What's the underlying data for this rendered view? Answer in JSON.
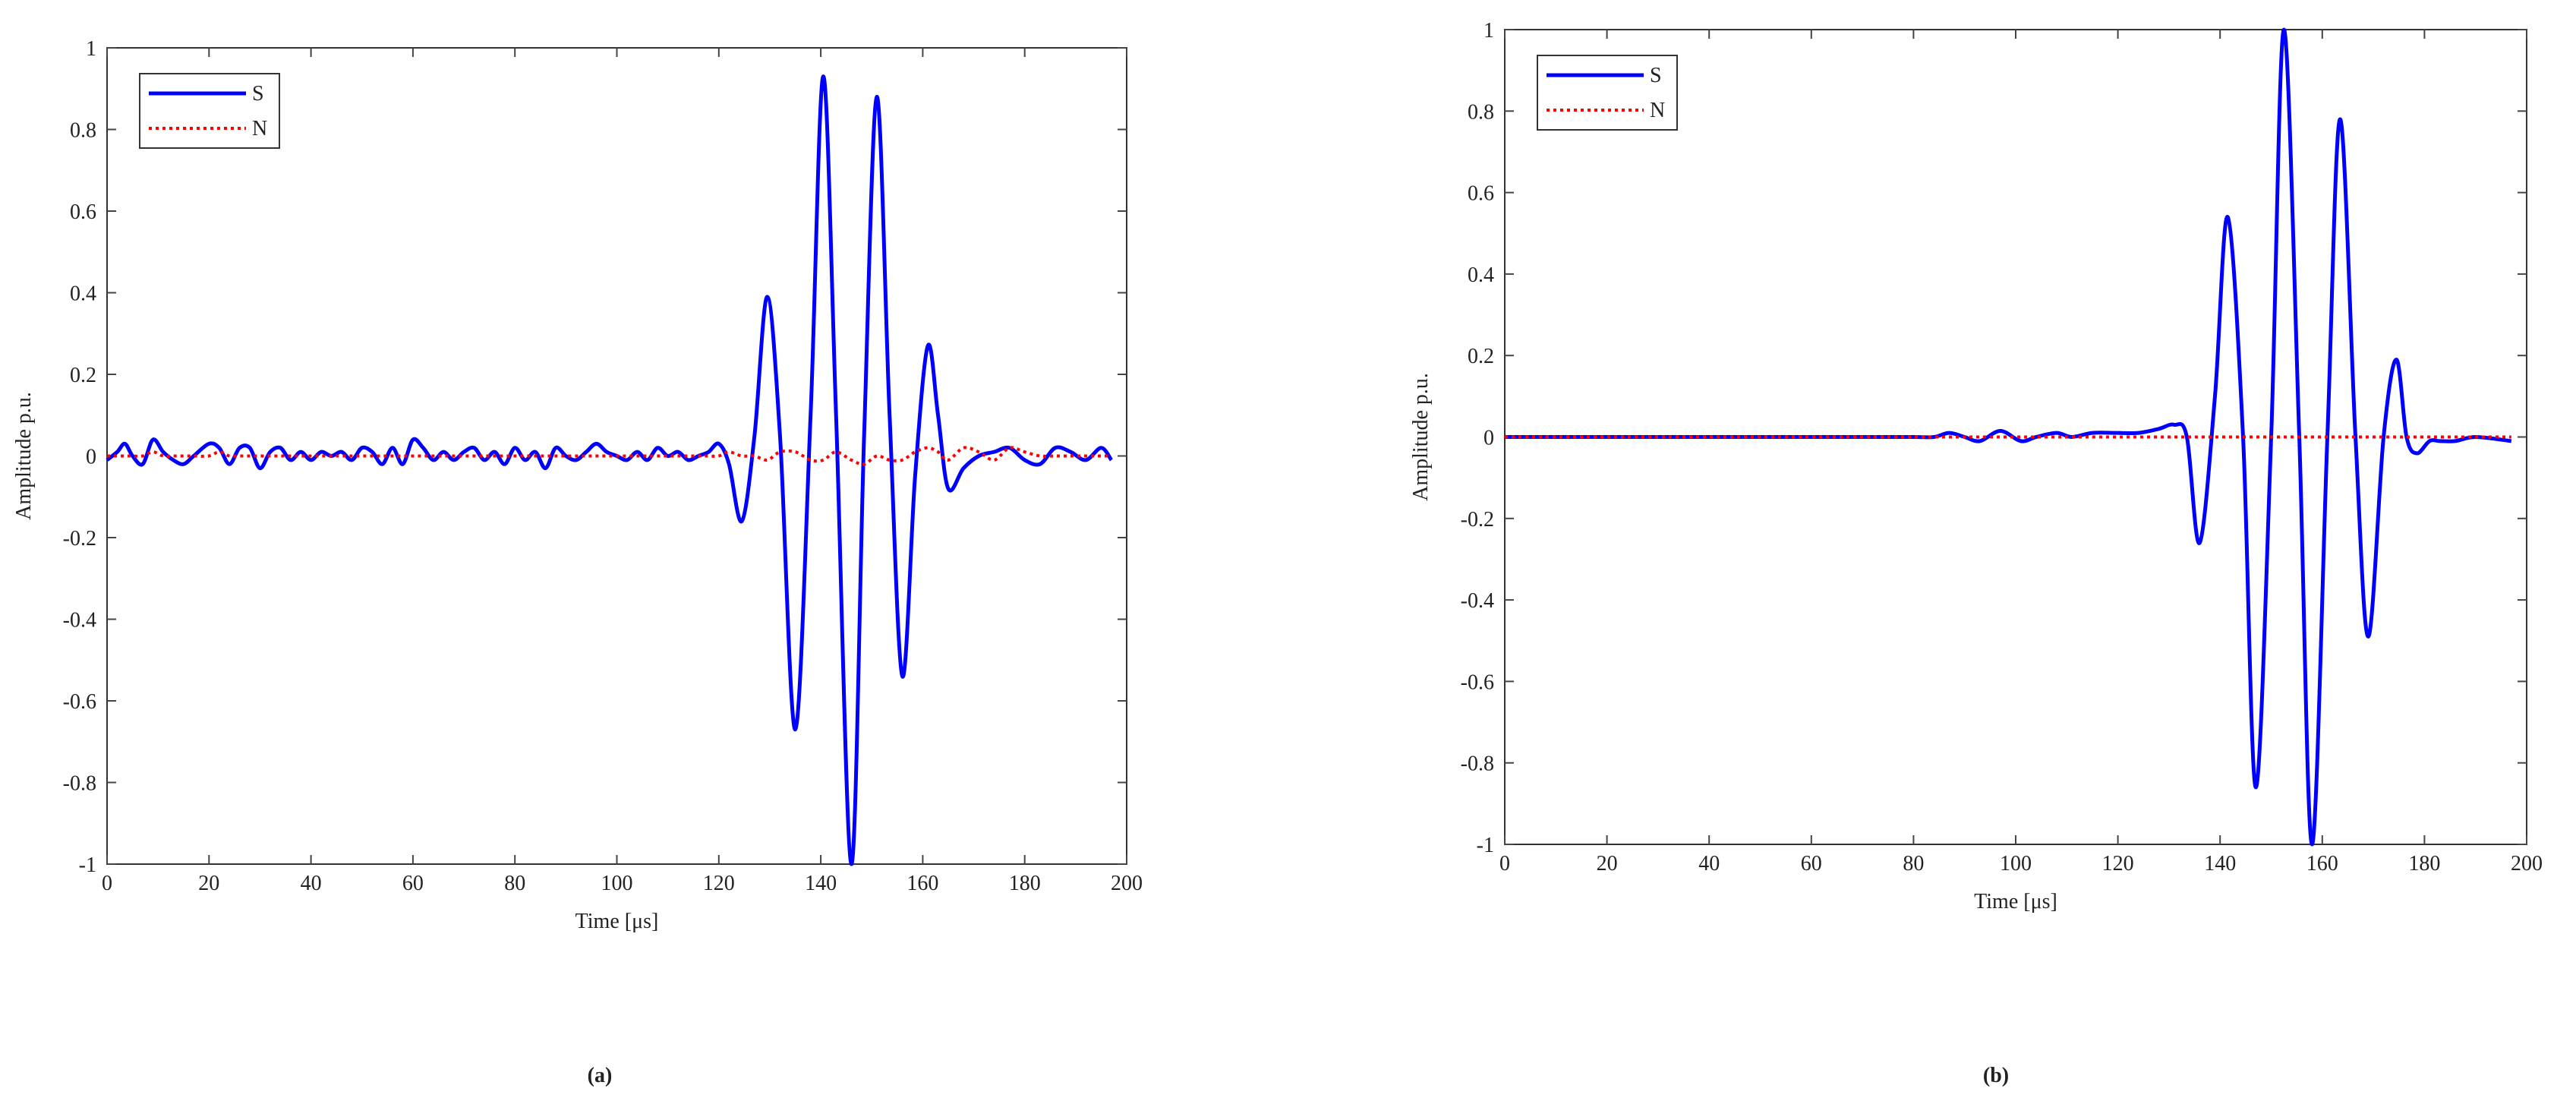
{
  "chart_data": [
    {
      "type": "line",
      "panel_label": "(a)",
      "xlabel": "Time [μs]",
      "ylabel": "Amplitude p.u.",
      "xlim": [
        0,
        200
      ],
      "ylim": [
        -1,
        1
      ],
      "xticks": [
        0,
        20,
        40,
        60,
        80,
        100,
        120,
        140,
        160,
        180,
        200
      ],
      "yticks": [
        -1,
        -0.8,
        -0.6,
        -0.4,
        -0.2,
        0,
        0.2,
        0.4,
        0.6,
        0.8,
        1
      ],
      "grid": false,
      "legend": "upper left",
      "x": [
        0,
        2,
        3.5,
        5,
        7,
        9,
        11,
        13,
        15,
        17,
        20,
        22,
        24,
        26,
        28,
        30,
        32,
        34,
        36,
        38,
        40,
        42,
        44,
        46,
        48,
        50,
        52,
        54,
        56,
        58,
        60,
        62,
        64,
        66,
        68,
        70,
        72,
        74,
        76,
        78,
        80,
        82,
        84,
        86,
        88,
        90,
        92,
        94,
        96,
        98,
        100,
        102,
        104,
        106,
        108,
        110,
        112,
        114,
        116,
        118,
        120,
        122,
        124.5,
        127,
        129.5,
        132,
        135,
        138,
        140.5,
        143,
        146,
        148.5,
        151,
        153.5,
        156,
        158.5,
        161,
        163,
        165,
        168,
        171,
        174,
        177,
        180,
        183,
        186,
        189,
        192,
        195,
        197
      ],
      "series": [
        {
          "name": "S",
          "color": "#0000ff",
          "style": "solid",
          "values": [
            -0.01,
            0.01,
            0.03,
            0,
            -0.02,
            0.04,
            0.01,
            -0.01,
            -0.02,
            0,
            0.03,
            0.02,
            -0.02,
            0.02,
            0.02,
            -0.03,
            0.01,
            0.02,
            -0.01,
            0.01,
            -0.01,
            0.01,
            0,
            0.01,
            -0.01,
            0.02,
            0.01,
            -0.02,
            0.02,
            -0.02,
            0.04,
            0.02,
            -0.01,
            0.01,
            -0.01,
            0.01,
            0.02,
            -0.01,
            0.01,
            -0.02,
            0.02,
            -0.01,
            0.01,
            -0.03,
            0.02,
            0,
            -0.01,
            0.01,
            0.03,
            0.01,
            0,
            -0.01,
            0.01,
            -0.01,
            0.02,
            0,
            0.01,
            -0.01,
            0,
            0.01,
            0.03,
            -0.02,
            -0.16,
            0.05,
            0.39,
            0.05,
            -0.67,
            0.1,
            0.93,
            0.1,
            -1,
            0.05,
            0.88,
            0.1,
            -0.54,
            -0.05,
            0.27,
            0.1,
            -0.08,
            -0.03,
            0,
            0.01,
            0.02,
            -0.01,
            -0.02,
            0.02,
            0.01,
            -0.01,
            0.02,
            -0.01
          ]
        },
        {
          "name": "N",
          "color": "#ff0000",
          "style": "dotted",
          "values": [
            0,
            0,
            0,
            0,
            0,
            0.01,
            0,
            0,
            0,
            0,
            0,
            0.01,
            0,
            0,
            0,
            0,
            0,
            0,
            0,
            0,
            0,
            0,
            0,
            0,
            0,
            0,
            0,
            0,
            0,
            0,
            0,
            0,
            0,
            0,
            0,
            0,
            0,
            0,
            0,
            0,
            0,
            0,
            0,
            0,
            0,
            0,
            0,
            0,
            0,
            0,
            0,
            0,
            0,
            0,
            0,
            0,
            0,
            0,
            0,
            0,
            0,
            0.01,
            0,
            0,
            -0.01,
            0.01,
            0.01,
            -0.01,
            -0.01,
            0.01,
            -0.01,
            -0.02,
            0,
            -0.01,
            -0.01,
            0.01,
            0.02,
            0.01,
            -0.01,
            0.02,
            0.01,
            -0.01,
            0.02,
            0.01,
            0,
            0,
            0,
            0,
            0,
            0
          ]
        }
      ]
    },
    {
      "type": "line",
      "panel_label": "(b)",
      "xlabel": "Time [μs]",
      "ylabel": "Amplitude p.u.",
      "xlim": [
        0,
        200
      ],
      "ylim": [
        -1,
        1
      ],
      "xticks": [
        0,
        20,
        40,
        60,
        80,
        100,
        120,
        140,
        160,
        180,
        200
      ],
      "yticks": [
        -1,
        -0.8,
        -0.6,
        -0.4,
        -0.2,
        0,
        0.2,
        0.4,
        0.6,
        0.8,
        1
      ],
      "grid": false,
      "legend": "upper left",
      "x": [
        0,
        10,
        20,
        30,
        40,
        50,
        60,
        70,
        80,
        84,
        87,
        90,
        93,
        97,
        101,
        104,
        108,
        111,
        115,
        120,
        124,
        128,
        131,
        133.5,
        136,
        139,
        141.5,
        144.5,
        147,
        150,
        152.5,
        155.5,
        158,
        161,
        163.5,
        166.5,
        169,
        172,
        174.5,
        176.5,
        178.5,
        181,
        183,
        186,
        190,
        197
      ],
      "series": [
        {
          "name": "S",
          "color": "#0000ff",
          "style": "solid",
          "values": [
            0,
            0,
            0,
            0,
            0,
            0,
            0,
            0,
            0,
            0,
            0.01,
            0,
            -0.01,
            0.015,
            -0.01,
            0,
            0.01,
            0,
            0.01,
            0.01,
            0.01,
            0.02,
            0.03,
            0,
            -0.26,
            0.1,
            0.54,
            0,
            -0.86,
            0,
            1,
            0,
            -1,
            0,
            0.78,
            0,
            -0.49,
            0,
            0.19,
            0,
            -0.04,
            -0.01,
            -0.01,
            -0.01,
            0,
            -0.01
          ]
        },
        {
          "name": "N",
          "color": "#ff0000",
          "style": "dotted",
          "values": [
            0,
            0,
            0,
            0,
            0,
            0,
            0,
            0,
            0,
            0,
            0,
            0,
            0,
            0,
            0,
            0,
            0,
            0,
            0,
            0,
            0,
            0,
            0,
            0,
            0,
            0,
            0,
            0,
            0,
            0,
            0,
            0,
            0,
            0,
            0,
            0,
            0,
            0,
            0,
            0,
            0,
            0,
            0,
            0,
            0,
            0
          ]
        }
      ]
    }
  ]
}
